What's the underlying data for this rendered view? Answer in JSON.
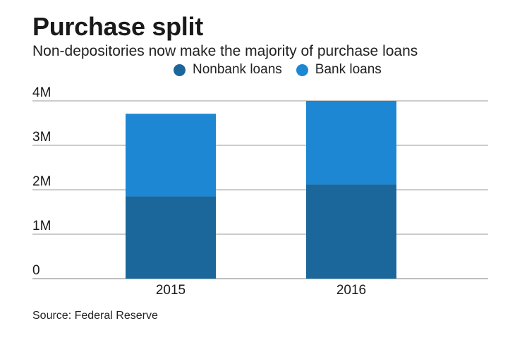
{
  "title": "Purchase split",
  "subtitle": "Non-depositories now make the majority of purchase loans",
  "source": "Source: Federal Reserve",
  "colors": {
    "nonbank": "#1b679c",
    "bank": "#1d87d4",
    "grid": "#999999",
    "text": "#1a1a1a"
  },
  "legend": [
    {
      "label": "Nonbank loans",
      "color": "#1b679c"
    },
    {
      "label": "Bank loans",
      "color": "#1d87d4"
    }
  ],
  "chart_data": {
    "type": "bar",
    "stacked": true,
    "categories": [
      "2015",
      "2016"
    ],
    "series": [
      {
        "name": "Nonbank loans",
        "values": [
          1850000,
          2120000
        ]
      },
      {
        "name": "Bank loans",
        "values": [
          1860000,
          1880000
        ]
      }
    ],
    "y_ticks": [
      {
        "value": 0,
        "label": "0"
      },
      {
        "value": 1000000,
        "label": "1M"
      },
      {
        "value": 2000000,
        "label": "2M"
      },
      {
        "value": 3000000,
        "label": "3M"
      },
      {
        "value": 4000000,
        "label": "4M"
      }
    ],
    "ylim": [
      0,
      4000000
    ],
    "grid": true,
    "legend_position": "top"
  }
}
